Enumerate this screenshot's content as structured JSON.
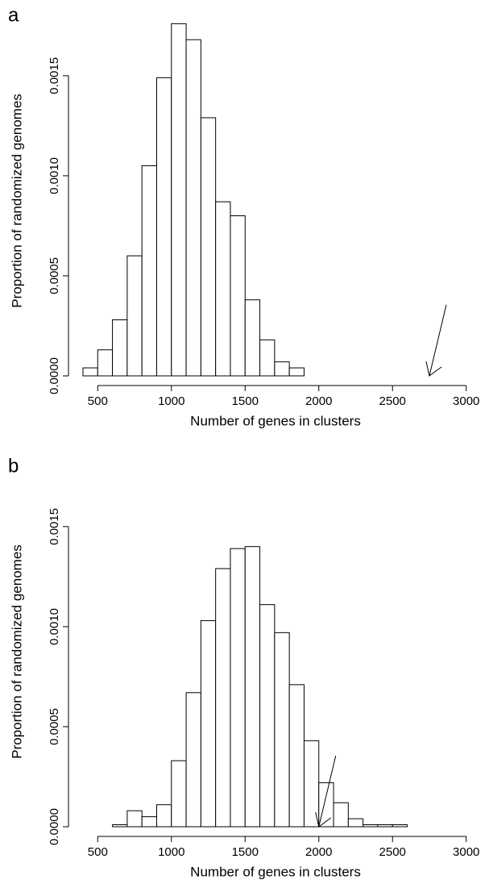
{
  "chart_data": [
    {
      "type": "histogram",
      "panel": "a",
      "xlabel": "Number of genes in clusters",
      "ylabel": "Proportion of randomized genomes",
      "bins": [
        400,
        500,
        600,
        700,
        800,
        900,
        1000,
        1100,
        1200,
        1300,
        1400,
        1500,
        1600,
        1700,
        1800,
        1900,
        2000,
        2100,
        2200,
        2300,
        2400,
        2500,
        2600,
        2700,
        2800,
        2900,
        3000,
        3100
      ],
      "values": [
        4e-05,
        0.00013,
        0.00028,
        0.0006,
        0.00105,
        0.00149,
        0.00176,
        0.00168,
        0.00129,
        0.00087,
        0.0008,
        0.00038,
        0.00018,
        7e-05,
        4e-05,
        0,
        0,
        0,
        0,
        0,
        0,
        0,
        0,
        0,
        0,
        0,
        0
      ],
      "color": "#ffffff",
      "xlim": [
        400,
        3100
      ],
      "xticks": [
        500,
        1000,
        1500,
        2000,
        2500,
        3000
      ],
      "ylim": [
        0,
        0.00183
      ],
      "yticks": [
        {
          "value": 0,
          "label": "0.0000"
        },
        {
          "value": 0.0005,
          "label": "0.0005"
        },
        {
          "value": 0.001,
          "label": "0.0010"
        },
        {
          "value": 0.0015,
          "label": "0.0015"
        }
      ],
      "arrow_x": 2750
    },
    {
      "type": "histogram",
      "panel": "b",
      "xlabel": "Number of genes in clusters",
      "ylabel": "Proportion of randomized genomes",
      "bins": [
        400,
        500,
        600,
        700,
        800,
        900,
        1000,
        1100,
        1200,
        1300,
        1400,
        1500,
        1600,
        1700,
        1800,
        1900,
        2000,
        2100,
        2200,
        2300,
        2400,
        2500,
        2600,
        2700,
        2800,
        2900,
        3000,
        3100
      ],
      "values": [
        0,
        0,
        1e-05,
        8e-05,
        5e-05,
        0.00011,
        0.00033,
        0.00067,
        0.00103,
        0.00129,
        0.00139,
        0.0014,
        0.00111,
        0.00097,
        0.00071,
        0.00043,
        0.00022,
        0.00012,
        4e-05,
        1e-05,
        1e-05,
        1e-05,
        0,
        0,
        0,
        0,
        0
      ],
      "color": "#ffffff",
      "xlim": [
        400,
        3100
      ],
      "xticks": [
        500,
        1000,
        1500,
        2000,
        2500,
        3000
      ],
      "ylim": [
        0,
        0.00183
      ],
      "yticks": [
        {
          "value": 0,
          "label": "0.0000"
        },
        {
          "value": 0.0005,
          "label": "0.0005"
        },
        {
          "value": 0.001,
          "label": "0.0010"
        },
        {
          "value": 0.0015,
          "label": "0.0015"
        }
      ],
      "arrow_x": 2000
    }
  ]
}
